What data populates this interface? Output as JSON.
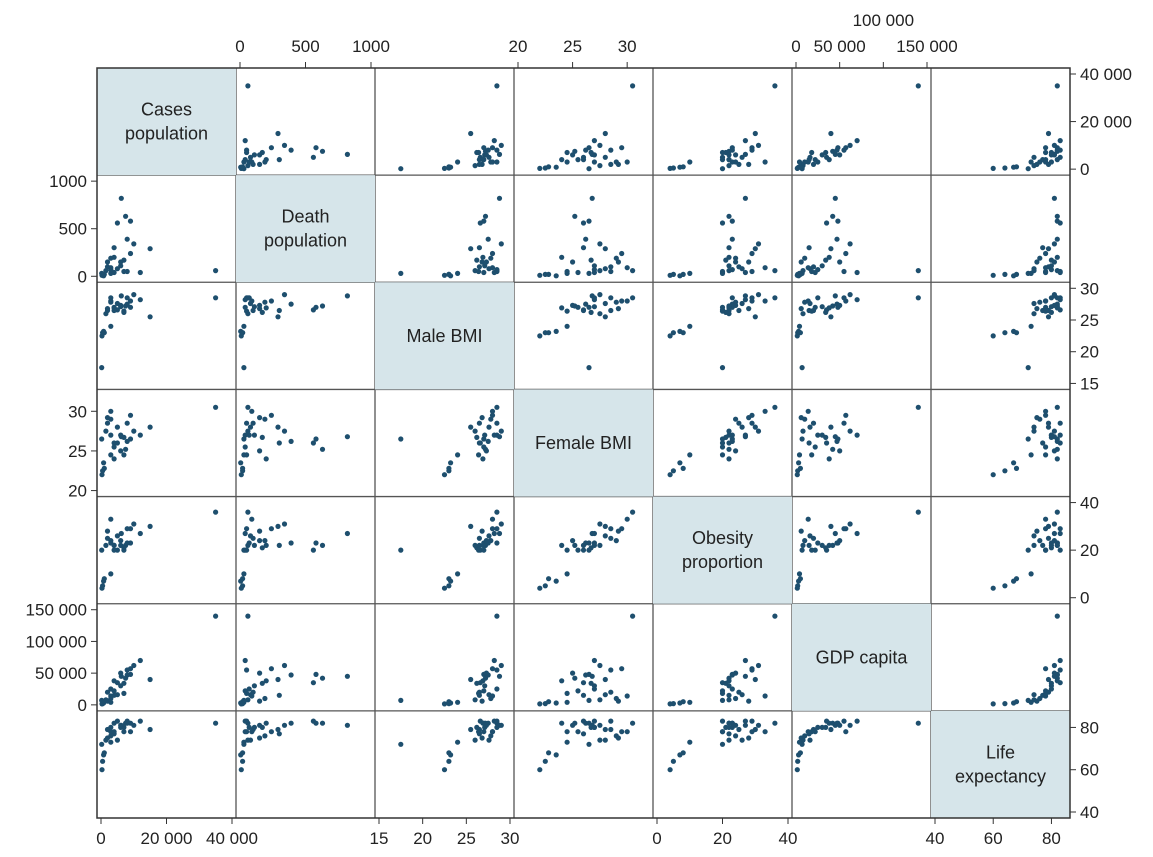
{
  "chart_data": {
    "type": "scatter-matrix",
    "variables": [
      {
        "key": "cases",
        "label_lines": [
          "Cases",
          "population"
        ],
        "range": [
          0,
          40000
        ],
        "ticks": [
          {
            "v": 0,
            "label": "0"
          },
          {
            "v": 20000,
            "label": "20 000"
          },
          {
            "v": 40000,
            "label": "40 000"
          }
        ]
      },
      {
        "key": "deaths",
        "label_lines": [
          "Death",
          "population"
        ],
        "range": [
          0,
          1000
        ],
        "ticks": [
          {
            "v": 0,
            "label": "0"
          },
          {
            "v": 500,
            "label": "500"
          },
          {
            "v": 1000,
            "label": "1000"
          }
        ]
      },
      {
        "key": "male_bmi",
        "label_lines": [
          "Male BMI"
        ],
        "range": [
          15,
          30
        ],
        "ticks": [
          {
            "v": 15,
            "label": "15"
          },
          {
            "v": 20,
            "label": "20"
          },
          {
            "v": 25,
            "label": "25"
          },
          {
            "v": 30,
            "label": "30"
          }
        ]
      },
      {
        "key": "female_bmi",
        "label_lines": [
          "Female BMI"
        ],
        "range": [
          20,
          32
        ],
        "ticks": [
          {
            "v": 20,
            "label": "20"
          },
          {
            "v": 25,
            "label": "25"
          },
          {
            "v": 30,
            "label": "30"
          }
        ]
      },
      {
        "key": "obesity",
        "label_lines": [
          "Obesity",
          "proportion"
        ],
        "range": [
          0,
          40
        ],
        "ticks": [
          {
            "v": 0,
            "label": "0"
          },
          {
            "v": 20,
            "label": "20"
          },
          {
            "v": 40,
            "label": "40"
          }
        ]
      },
      {
        "key": "gdp",
        "label_lines": [
          "GDP capita"
        ],
        "range": [
          0,
          150000
        ],
        "ticks": [
          {
            "v": 0,
            "label": "0"
          },
          {
            "v": 50000,
            "label": "50 000"
          },
          {
            "v": 100000,
            "label": "100 000"
          },
          {
            "v": 150000,
            "label": "150 000"
          }
        ]
      },
      {
        "key": "life",
        "label_lines": [
          "Life",
          "expectancy"
        ],
        "range": [
          40,
          85
        ],
        "ticks": [
          {
            "v": 40,
            "label": "40"
          },
          {
            "v": 60,
            "label": "60"
          },
          {
            "v": 80,
            "label": "80"
          }
        ]
      }
    ],
    "points": [
      {
        "cases": 35000,
        "deaths": 60,
        "male_bmi": 28.5,
        "female_bmi": 30.5,
        "obesity": 36,
        "gdp": 140000,
        "life": 82
      },
      {
        "cases": 15000,
        "deaths": 290,
        "male_bmi": 25.5,
        "female_bmi": 28.0,
        "obesity": 30,
        "gdp": 40000,
        "life": 79
      },
      {
        "cases": 6200,
        "deaths": 820,
        "male_bmi": 28.8,
        "female_bmi": 26.8,
        "obesity": 27,
        "gdp": 45000,
        "life": 81
      },
      {
        "cases": 7500,
        "deaths": 630,
        "male_bmi": 27.2,
        "female_bmi": 25.2,
        "obesity": 22,
        "gdp": 42000,
        "life": 82
      },
      {
        "cases": 9000,
        "deaths": 580,
        "male_bmi": 27.0,
        "female_bmi": 26.5,
        "obesity": 23,
        "gdp": 48000,
        "life": 82
      },
      {
        "cases": 5000,
        "deaths": 560,
        "male_bmi": 26.6,
        "female_bmi": 26.0,
        "obesity": 20,
        "gdp": 35000,
        "life": 83
      },
      {
        "cases": 8000,
        "deaths": 390,
        "male_bmi": 27.5,
        "female_bmi": 26.2,
        "obesity": 23,
        "gdp": 47000,
        "life": 82
      },
      {
        "cases": 10000,
        "deaths": 340,
        "male_bmi": 29.0,
        "female_bmi": 27.5,
        "obesity": 31,
        "gdp": 62000,
        "life": 81
      },
      {
        "cases": 4000,
        "deaths": 300,
        "male_bmi": 26.5,
        "female_bmi": 26.0,
        "obesity": 22,
        "gdp": 15000,
        "life": 77
      },
      {
        "cases": 9000,
        "deaths": 240,
        "male_bmi": 28.0,
        "female_bmi": 29.5,
        "obesity": 29,
        "gdp": 57000,
        "life": 78
      },
      {
        "cases": 3000,
        "deaths": 190,
        "male_bmi": 27.8,
        "female_bmi": 29.0,
        "obesity": 24,
        "gdp": 10000,
        "life": 76
      },
      {
        "cases": 7000,
        "deaths": 170,
        "male_bmi": 26.2,
        "female_bmi": 26.7,
        "obesity": 21,
        "gdp": 34000,
        "life": 80
      },
      {
        "cases": 2000,
        "deaths": 150,
        "male_bmi": 26.8,
        "female_bmi": 29.2,
        "obesity": 28,
        "gdp": 6000,
        "life": 75
      },
      {
        "cases": 6000,
        "deaths": 110,
        "male_bmi": 27.1,
        "female_bmi": 27.0,
        "obesity": 22,
        "gdp": 30000,
        "life": 80
      },
      {
        "cases": 5000,
        "deaths": 80,
        "male_bmi": 27.6,
        "female_bmi": 28.0,
        "obesity": 26,
        "gdp": 16000,
        "life": 74
      },
      {
        "cases": 4000,
        "deaths": 40,
        "male_bmi": 27.0,
        "female_bmi": 25.5,
        "obesity": 20,
        "gdp": 22000,
        "life": 78
      },
      {
        "cases": 3000,
        "deaths": 90,
        "male_bmi": 28.0,
        "female_bmi": 30.0,
        "obesity": 33,
        "gdp": 14000,
        "life": 78
      },
      {
        "cases": 1500,
        "deaths": 60,
        "male_bmi": 26.0,
        "female_bmi": 27.5,
        "obesity": 22,
        "gdp": 8000,
        "life": 74
      },
      {
        "cases": 8000,
        "deaths": 50,
        "male_bmi": 28.5,
        "female_bmi": 28.5,
        "obesity": 29,
        "gdp": 55000,
        "life": 83
      },
      {
        "cases": 12000,
        "deaths": 40,
        "male_bmi": 28.2,
        "female_bmi": 27.0,
        "obesity": 27,
        "gdp": 70000,
        "life": 83
      },
      {
        "cases": 3000,
        "deaths": 30,
        "male_bmi": 24.0,
        "female_bmi": 24.5,
        "obesity": 10,
        "gdp": 4000,
        "life": 73
      },
      {
        "cases": 500,
        "deaths": 20,
        "male_bmi": 23.0,
        "female_bmi": 22.5,
        "obesity": 5,
        "gdp": 2000,
        "life": 64
      },
      {
        "cases": 300,
        "deaths": 10,
        "male_bmi": 22.5,
        "female_bmi": 22.0,
        "obesity": 4,
        "gdp": 1500,
        "life": 60
      },
      {
        "cases": 800,
        "deaths": 5,
        "male_bmi": 23.2,
        "female_bmi": 23.5,
        "obesity": 7,
        "gdp": 3000,
        "life": 67
      },
      {
        "cases": 200,
        "deaths": 30,
        "male_bmi": 17.5,
        "female_bmi": 26.5,
        "obesity": 20,
        "gdp": 7000,
        "life": 72
      },
      {
        "cases": 4000,
        "deaths": 200,
        "male_bmi": 26.9,
        "female_bmi": 24.0,
        "obesity": 22,
        "gdp": 38000,
        "life": 82
      },
      {
        "cases": 6000,
        "deaths": 150,
        "male_bmi": 27.3,
        "female_bmi": 25.0,
        "obesity": 24,
        "gdp": 50000,
        "life": 81
      },
      {
        "cases": 2000,
        "deaths": 100,
        "male_bmi": 26.5,
        "female_bmi": 28.5,
        "obesity": 25,
        "gdp": 20000,
        "life": 79
      },
      {
        "cases": 3000,
        "deaths": 70,
        "male_bmi": 28.5,
        "female_bmi": 27.0,
        "obesity": 23,
        "gdp": 25000,
        "life": 80
      },
      {
        "cases": 7000,
        "deaths": 50,
        "male_bmi": 26.4,
        "female_bmi": 24.5,
        "obesity": 20,
        "gdp": 18000,
        "life": 78
      },
      {
        "cases": 1000,
        "deaths": 20,
        "male_bmi": 23.0,
        "female_bmi": 22.8,
        "obesity": 8,
        "gdp": 5000,
        "life": 68
      }
    ]
  }
}
